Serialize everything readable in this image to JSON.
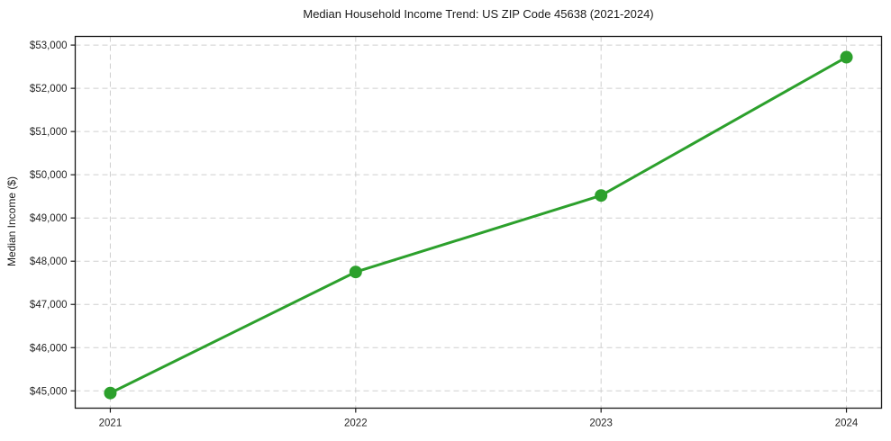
{
  "chart_data": {
    "type": "line",
    "title": "Median Household Income Trend: US ZIP Code 45638 (2021-2024)",
    "xlabel": "",
    "ylabel": "Median Income ($)",
    "x": [
      "2021",
      "2022",
      "2023",
      "2024"
    ],
    "series": [
      {
        "name": "Median Household Income",
        "values": [
          44950,
          47750,
          49520,
          52720
        ]
      }
    ],
    "yticks": {
      "values": [
        45000,
        46000,
        47000,
        48000,
        49000,
        50000,
        51000,
        52000,
        53000
      ],
      "labels": [
        "$45,000",
        "$46,000",
        "$47,000",
        "$48,000",
        "$49,000",
        "$50,000",
        "$51,000",
        "$52,000",
        "$53,000"
      ]
    },
    "ylim": [
      44600,
      53200
    ],
    "grid": "dashed both axes",
    "legend": "none",
    "line_color": "#2ca02c",
    "marker": "circle",
    "background_color": "#ffffff"
  }
}
